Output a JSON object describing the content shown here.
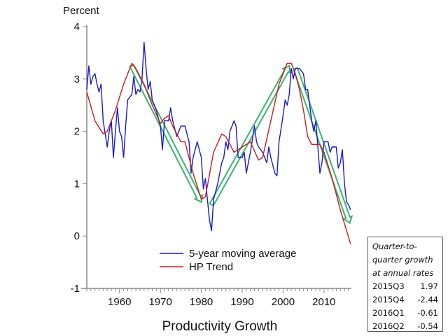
{
  "chart_data": {
    "type": "line",
    "title": "Productivity Growth",
    "ylabel": "Percent",
    "xlim": [
      1952,
      2016.7
    ],
    "ylim": [
      -1,
      4
    ],
    "yticks": [
      4,
      3,
      2,
      1,
      0,
      -1
    ],
    "xticks": [
      1960,
      1970,
      1980,
      1990,
      2000,
      2010
    ],
    "grid": false,
    "legend_placement": "bottom-center",
    "series": [
      {
        "name": "5-year moving average",
        "color": "#1a1acc",
        "x": [
          1952,
          1952.5,
          1953,
          1953.5,
          1954,
          1954.5,
          1955,
          1955.5,
          1956,
          1956.5,
          1957,
          1957.5,
          1958,
          1958.5,
          1959,
          1959.5,
          1960,
          1960.5,
          1961,
          1961.5,
          1962,
          1963,
          1963.5,
          1964,
          1964.5,
          1965,
          1965.5,
          1966,
          1966.5,
          1967,
          1967.5,
          1968,
          1969,
          1970,
          1970.5,
          1971,
          1972,
          1972.5,
          1973,
          1974,
          1975,
          1976,
          1977,
          1977.5,
          1978,
          1979,
          1980,
          1980.5,
          1981,
          1981.5,
          1982,
          1982.5,
          1983,
          1984,
          1985,
          1985.5,
          1986,
          1986.5,
          1987,
          1988,
          1988.5,
          1989,
          1990,
          1990.5,
          1991,
          1992,
          1993,
          1993.5,
          1994,
          1995,
          1996,
          1996.5,
          1997,
          1998,
          1998.5,
          1999,
          2000,
          2000.5,
          2001,
          2001.5,
          2002,
          2002.5,
          2003,
          2004,
          2005,
          2005.5,
          2006,
          2007,
          2007.5,
          2008,
          2008.5,
          2009,
          2009.5,
          2010,
          2011,
          2011.5,
          2012,
          2013,
          2013.5,
          2014,
          2014.5,
          2015,
          2015.5,
          2016,
          2016.5
        ],
        "y": [
          2.8,
          3.25,
          2.9,
          3.05,
          3.1,
          2.9,
          2.75,
          2.9,
          2.2,
          1.95,
          1.7,
          2.0,
          2.2,
          1.5,
          2.0,
          2.45,
          2.0,
          1.9,
          1.5,
          2.1,
          2.6,
          2.7,
          3.05,
          2.7,
          2.8,
          2.75,
          3.0,
          3.7,
          3.2,
          2.8,
          2.95,
          2.6,
          2.4,
          2.1,
          1.65,
          2.2,
          2.2,
          2.45,
          2.2,
          1.9,
          2.1,
          2.1,
          1.8,
          1.2,
          1.5,
          1.8,
          1.5,
          0.9,
          1.1,
          0.7,
          0.3,
          0.1,
          0.7,
          1.0,
          1.4,
          1.5,
          1.8,
          1.65,
          2.0,
          2.2,
          2.1,
          1.5,
          1.5,
          1.6,
          1.2,
          1.6,
          2.1,
          1.8,
          1.7,
          1.6,
          1.4,
          1.7,
          1.5,
          1.2,
          1.15,
          1.8,
          2.3,
          2.6,
          2.5,
          2.7,
          3.2,
          3.0,
          3.2,
          3.2,
          3.1,
          2.8,
          2.8,
          2.2,
          2.0,
          2.2,
          1.7,
          1.2,
          1.4,
          1.8,
          1.8,
          1.6,
          1.7,
          1.7,
          1.3,
          1.4,
          1.65,
          1.0,
          0.65,
          0.6,
          0.5
        ]
      },
      {
        "name": "HP Trend",
        "color": "#cc1a1a",
        "x": [
          1952,
          1954,
          1956,
          1957,
          1959,
          1961,
          1963,
          1964,
          1966,
          1968,
          1970,
          1971,
          1972,
          1973,
          1975,
          1976,
          1978,
          1980,
          1981,
          1983,
          1985,
          1986,
          1988,
          1990,
          1992,
          1994,
          1995,
          1997,
          1999,
          2001,
          2002,
          2003,
          2004,
          2005,
          2006,
          2007,
          2009,
          2010,
          2012,
          2014,
          2016.5
        ],
        "y": [
          2.75,
          2.2,
          1.95,
          2.0,
          2.4,
          2.9,
          3.3,
          3.2,
          2.9,
          2.5,
          2.15,
          2.25,
          2.3,
          2.1,
          1.8,
          1.8,
          1.2,
          0.7,
          0.75,
          1.6,
          1.95,
          1.9,
          1.6,
          1.7,
          1.8,
          1.45,
          1.5,
          2.2,
          2.9,
          3.3,
          3.3,
          3.1,
          2.8,
          2.4,
          1.9,
          1.75,
          1.75,
          1.6,
          1.1,
          0.5,
          -0.15
        ]
      }
    ],
    "annotations": {
      "arrow_color": "#3cb371",
      "arrows": [
        {
          "from": [
            1963,
            3.25
          ],
          "to": [
            1980,
            0.65
          ]
        },
        {
          "from": [
            1982.5,
            0.6
          ],
          "to": [
            2001.5,
            3.25
          ]
        },
        {
          "from": [
            2003,
            3.2
          ],
          "to": [
            2016.3,
            0.25
          ]
        }
      ]
    }
  },
  "note": {
    "heading": [
      "Quarter-to-",
      "quarter growth",
      "at annual rates"
    ],
    "rows": [
      {
        "quarter": "2015Q3",
        "value": "1.97"
      },
      {
        "quarter": "2015Q4",
        "value": "-2.44"
      },
      {
        "quarter": "2016Q1",
        "value": "-0.61"
      },
      {
        "quarter": "2016Q2",
        "value": "-0.54"
      }
    ]
  }
}
